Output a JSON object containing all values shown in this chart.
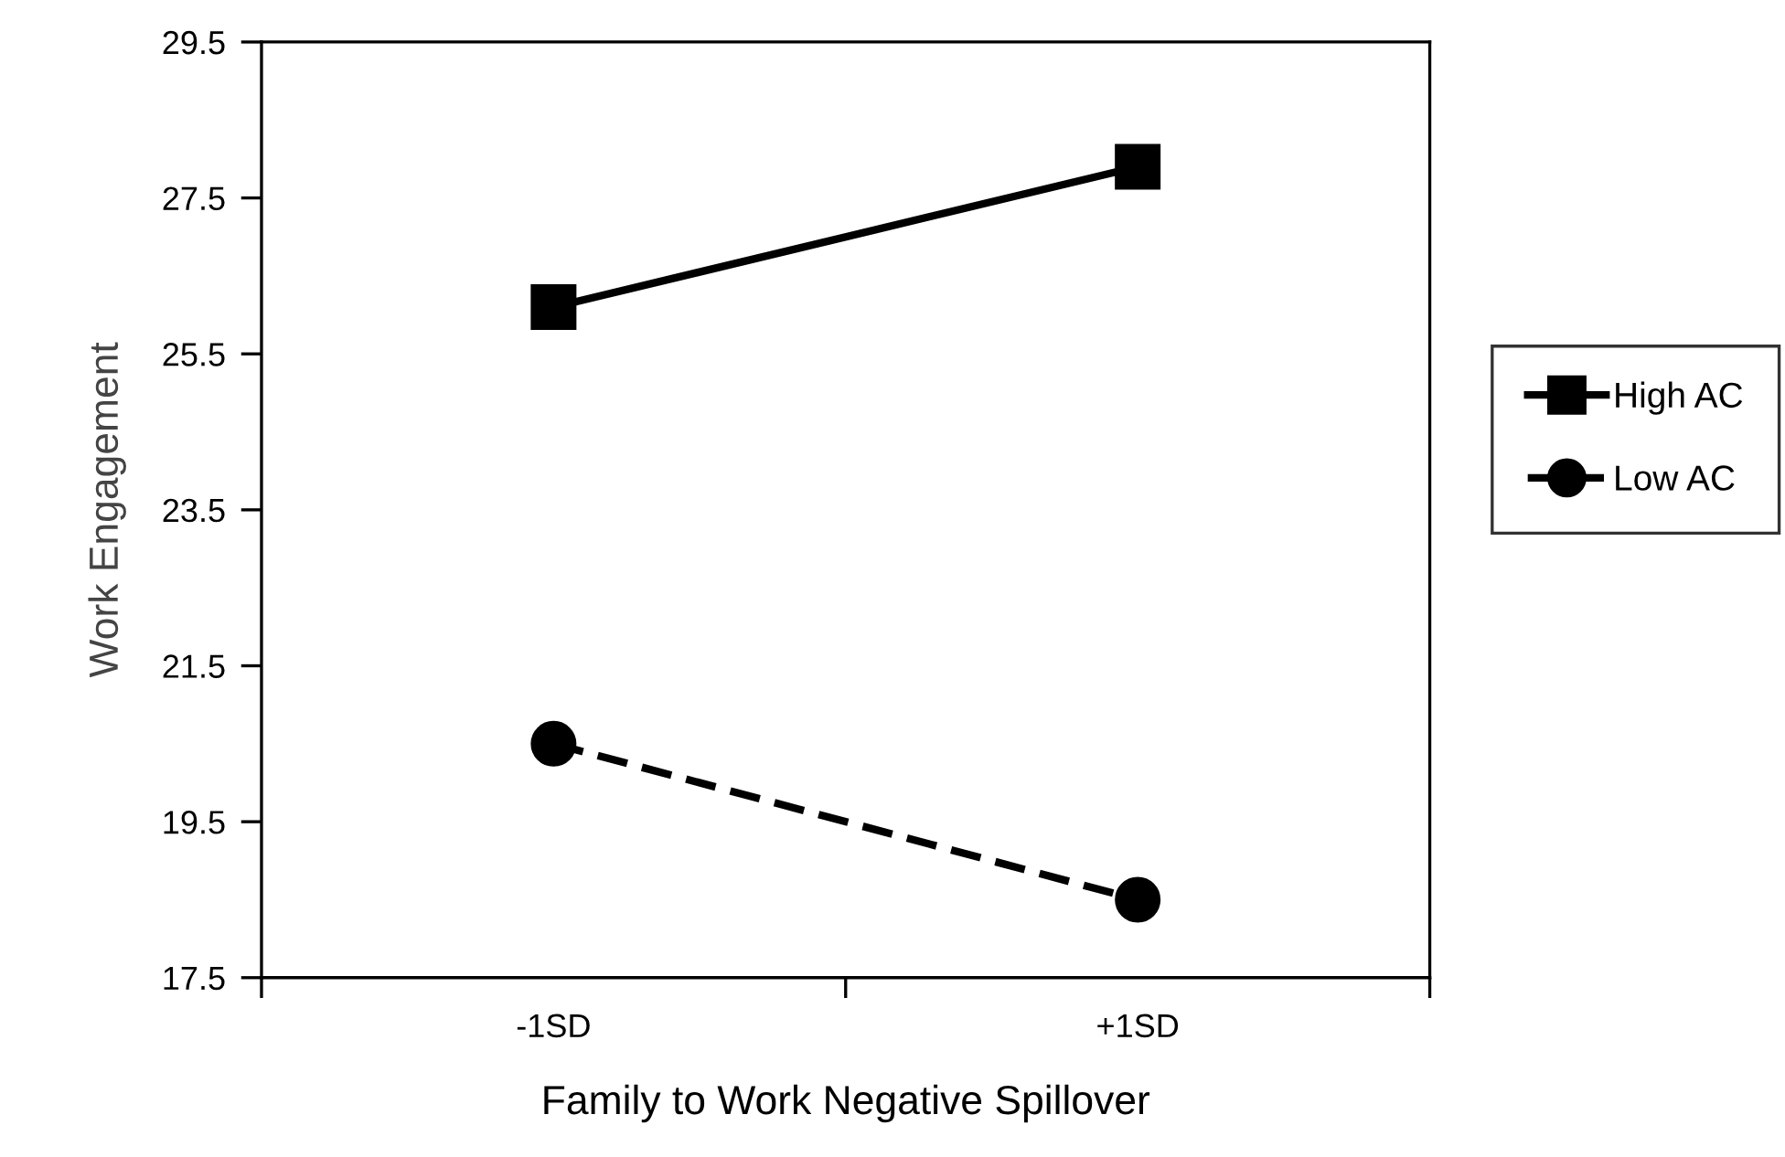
{
  "chart_data": {
    "type": "line",
    "xlabel": "Family to Work Negative Spillover",
    "ylabel": "Work Engagement",
    "categories": [
      "-1SD",
      "+1SD"
    ],
    "series": [
      {
        "name": "High AC",
        "color": "#000000",
        "values": [
          26.1,
          27.9
        ],
        "marker": "square",
        "line_style": "solid"
      },
      {
        "name": "Low AC",
        "color": "#000000",
        "values": [
          20.5,
          18.5
        ],
        "marker": "circle",
        "line_style": "dashed"
      }
    ],
    "ylim": [
      17.5,
      29.5
    ],
    "yticks": [
      {
        "value": 17.5,
        "label": "17.5"
      },
      {
        "value": 19.5,
        "label": "19.5"
      },
      {
        "value": 21.5,
        "label": "21.5"
      },
      {
        "value": 23.5,
        "label": "23.5"
      },
      {
        "value": 25.5,
        "label": "25.5"
      },
      {
        "value": 27.5,
        "label": "27.5"
      },
      {
        "value": 29.5,
        "label": "29.5"
      }
    ],
    "grid": false,
    "legend": "right"
  }
}
